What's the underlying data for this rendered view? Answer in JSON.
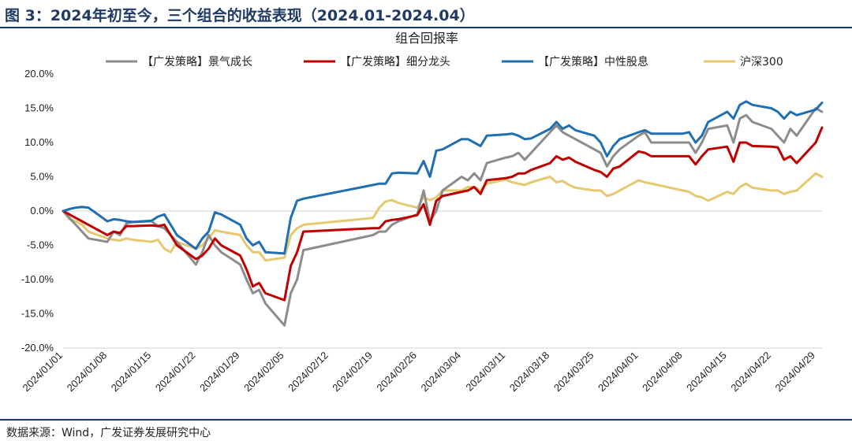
{
  "header": {
    "title": "图 3：2024年初至今，三个组合的收益表现（2024.01-2024.04）"
  },
  "footer": {
    "source": "数据来源：Wind，广发证券发展研究中心"
  },
  "chart_data": {
    "type": "line",
    "title": "组合回报率",
    "legend_position": "top",
    "grid": false,
    "ylim": [
      -0.2,
      0.2
    ],
    "yticks": [
      0.2,
      0.15,
      0.1,
      0.05,
      0.0,
      -0.05,
      -0.1,
      -0.15,
      -0.2
    ],
    "ytick_labels": [
      "20.0%",
      "15.0%",
      "10.0%",
      "5.0%",
      "0.0%",
      "-5.0%",
      "-10.0%",
      "-15.0%",
      "-20.0%"
    ],
    "xtick_labels": [
      "2024/01/01",
      "2024/01/08",
      "2024/01/15",
      "2024/01/22",
      "2024/01/29",
      "2024/02/05",
      "2024/02/12",
      "2024/02/19",
      "2024/02/26",
      "2024/03/04",
      "2024/03/11",
      "2024/03/18",
      "2024/03/25",
      "2024/04/01",
      "2024/04/08",
      "2024/04/15",
      "2024/04/22",
      "2024/04/29"
    ],
    "xlim": [
      "2024/01/01",
      "2024/04/30"
    ],
    "x": [
      "2024/01/01",
      "2024/01/02",
      "2024/01/03",
      "2024/01/04",
      "2024/01/05",
      "2024/01/08",
      "2024/01/09",
      "2024/01/10",
      "2024/01/11",
      "2024/01/12",
      "2024/01/15",
      "2024/01/16",
      "2024/01/17",
      "2024/01/18",
      "2024/01/19",
      "2024/01/22",
      "2024/01/23",
      "2024/01/24",
      "2024/01/25",
      "2024/01/26",
      "2024/01/29",
      "2024/01/30",
      "2024/01/31",
      "2024/02/01",
      "2024/02/02",
      "2024/02/05",
      "2024/02/06",
      "2024/02/07",
      "2024/02/08",
      "2024/02/19",
      "2024/02/20",
      "2024/02/21",
      "2024/02/22",
      "2024/02/23",
      "2024/02/26",
      "2024/02/27",
      "2024/02/28",
      "2024/02/29",
      "2024/03/01",
      "2024/03/04",
      "2024/03/05",
      "2024/03/06",
      "2024/03/07",
      "2024/03/08",
      "2024/03/11",
      "2024/03/12",
      "2024/03/13",
      "2024/03/14",
      "2024/03/15",
      "2024/03/18",
      "2024/03/19",
      "2024/03/20",
      "2024/03/21",
      "2024/03/22",
      "2024/03/25",
      "2024/03/26",
      "2024/03/27",
      "2024/03/28",
      "2024/03/29",
      "2024/04/01",
      "2024/04/02",
      "2024/04/03",
      "2024/04/08",
      "2024/04/09",
      "2024/04/10",
      "2024/04/11",
      "2024/04/12",
      "2024/04/15",
      "2024/04/16",
      "2024/04/17",
      "2024/04/18",
      "2024/04/19",
      "2024/04/22",
      "2024/04/23",
      "2024/04/24",
      "2024/04/25",
      "2024/04/26",
      "2024/04/29",
      "2024/04/30"
    ],
    "series": [
      {
        "name": "【广发策略】景气成长",
        "color": "#8c8c8c",
        "values": [
          0.0,
          -0.01,
          -0.02,
          -0.03,
          -0.04,
          -0.045,
          -0.03,
          -0.035,
          -0.018,
          -0.016,
          -0.015,
          -0.022,
          -0.025,
          -0.035,
          -0.045,
          -0.078,
          -0.06,
          -0.035,
          -0.05,
          -0.06,
          -0.078,
          -0.1,
          -0.12,
          -0.115,
          -0.135,
          -0.167,
          -0.12,
          -0.1,
          -0.057,
          -0.035,
          -0.03,
          -0.03,
          -0.02,
          -0.015,
          -0.005,
          0.03,
          -0.015,
          0.0,
          0.03,
          0.05,
          0.045,
          0.055,
          0.045,
          0.07,
          0.078,
          0.08,
          0.085,
          0.075,
          0.085,
          0.115,
          0.125,
          0.115,
          0.11,
          0.105,
          0.09,
          0.085,
          0.065,
          0.08,
          0.09,
          0.11,
          0.115,
          0.1,
          0.1,
          0.1,
          0.085,
          0.1,
          0.12,
          0.125,
          0.1,
          0.135,
          0.14,
          0.13,
          0.12,
          0.11,
          0.1,
          0.12,
          0.11,
          0.15,
          0.145
        ]
      },
      {
        "name": "【广发策略】细分龙头",
        "color": "#c00000",
        "values": [
          0.0,
          -0.005,
          -0.01,
          -0.015,
          -0.02,
          -0.035,
          -0.03,
          -0.032,
          -0.022,
          -0.022,
          -0.021,
          -0.022,
          -0.02,
          -0.035,
          -0.05,
          -0.07,
          -0.065,
          -0.055,
          -0.04,
          -0.05,
          -0.065,
          -0.085,
          -0.11,
          -0.105,
          -0.12,
          -0.13,
          -0.08,
          -0.06,
          -0.03,
          -0.025,
          -0.025,
          -0.015,
          -0.013,
          -0.012,
          -0.006,
          0.01,
          -0.02,
          0.015,
          0.022,
          0.028,
          0.03,
          0.035,
          0.025,
          0.045,
          0.048,
          0.05,
          0.055,
          0.055,
          0.06,
          0.07,
          0.08,
          0.075,
          0.078,
          0.072,
          0.06,
          0.057,
          0.05,
          0.062,
          0.065,
          0.087,
          0.085,
          0.08,
          0.08,
          0.08,
          0.068,
          0.08,
          0.09,
          0.094,
          0.072,
          0.1,
          0.1,
          0.095,
          0.094,
          0.093,
          0.075,
          0.08,
          0.07,
          0.1,
          0.122
        ]
      },
      {
        "name": "【广发策略】中性股息",
        "color": "#1f6fb2",
        "values": [
          0.0,
          0.003,
          0.005,
          0.006,
          0.005,
          -0.015,
          -0.012,
          -0.013,
          -0.015,
          -0.016,
          -0.014,
          -0.008,
          -0.005,
          -0.02,
          -0.035,
          -0.055,
          -0.04,
          -0.03,
          -0.002,
          -0.005,
          -0.02,
          -0.04,
          -0.05,
          -0.045,
          -0.06,
          -0.062,
          -0.01,
          0.015,
          0.018,
          0.038,
          0.04,
          0.04,
          0.055,
          0.056,
          0.055,
          0.073,
          0.05,
          0.088,
          0.09,
          0.105,
          0.105,
          0.1,
          0.095,
          0.11,
          0.112,
          0.113,
          0.11,
          0.105,
          0.106,
          0.12,
          0.13,
          0.12,
          0.125,
          0.118,
          0.11,
          0.1,
          0.08,
          0.095,
          0.105,
          0.115,
          0.118,
          0.113,
          0.113,
          0.115,
          0.1,
          0.11,
          0.13,
          0.145,
          0.135,
          0.155,
          0.16,
          0.155,
          0.15,
          0.145,
          0.135,
          0.145,
          0.14,
          0.148,
          0.158
        ]
      },
      {
        "name": "沪深300",
        "color": "#e6c86e",
        "values": [
          0.0,
          -0.012,
          -0.015,
          -0.02,
          -0.03,
          -0.04,
          -0.042,
          -0.043,
          -0.04,
          -0.042,
          -0.045,
          -0.042,
          -0.055,
          -0.06,
          -0.045,
          -0.055,
          -0.05,
          -0.04,
          -0.028,
          -0.03,
          -0.035,
          -0.05,
          -0.06,
          -0.06,
          -0.072,
          -0.068,
          -0.035,
          -0.025,
          -0.02,
          -0.01,
          0.005,
          0.014,
          0.016,
          0.012,
          0.005,
          0.02,
          0.016,
          0.02,
          0.03,
          0.03,
          0.035,
          0.035,
          0.03,
          0.04,
          0.046,
          0.042,
          0.04,
          0.038,
          0.042,
          0.05,
          0.042,
          0.044,
          0.038,
          0.034,
          0.03,
          0.03,
          0.022,
          0.025,
          0.03,
          0.045,
          0.042,
          0.04,
          0.03,
          0.028,
          0.022,
          0.02,
          0.015,
          0.028,
          0.025,
          0.035,
          0.04,
          0.034,
          0.03,
          0.03,
          0.025,
          0.028,
          0.03,
          0.055,
          0.05
        ]
      }
    ]
  }
}
